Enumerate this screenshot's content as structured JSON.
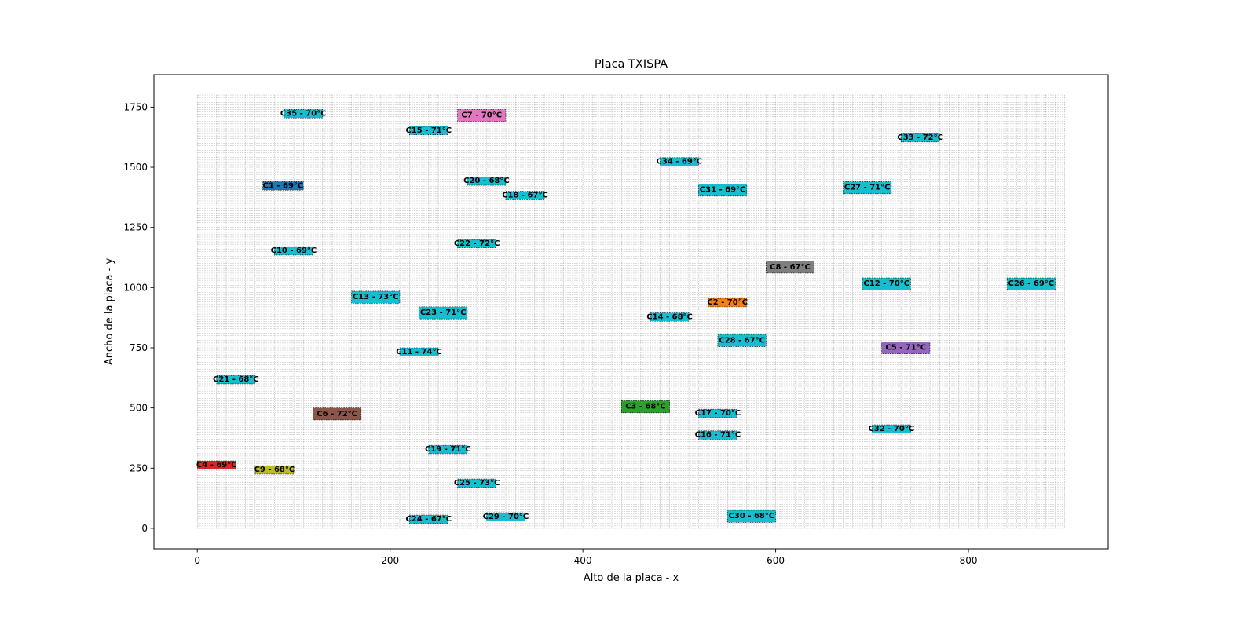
{
  "chart_data": {
    "type": "scatter",
    "title": "Placa TXISPA",
    "xlabel": "Alto de la placa - x",
    "ylabel": "Ancho de la placa - y",
    "xlim": [
      -45,
      945
    ],
    "ylim": [
      -85,
      1885
    ],
    "xticks": [
      0,
      200,
      400,
      600,
      800
    ],
    "yticks": [
      0,
      250,
      500,
      750,
      1000,
      1250,
      1500,
      1750
    ],
    "board": {
      "x_max": 900,
      "y_max": 1800,
      "grid_step": 10,
      "grid": "on"
    },
    "components": [
      {
        "label": "C1 - 69°C",
        "x": 68,
        "y": 1405,
        "w": 42,
        "h": 35,
        "color": "#1f77b4"
      },
      {
        "label": "C2 - 70°C",
        "x": 530,
        "y": 920,
        "w": 40,
        "h": 35,
        "color": "#ff7f0e"
      },
      {
        "label": "C3 - 68°C",
        "x": 440,
        "y": 480,
        "w": 50,
        "h": 50,
        "color": "#2ca02c"
      },
      {
        "label": "C4 - 69°C",
        "x": 0,
        "y": 245,
        "w": 40,
        "h": 35,
        "color": "#d62728"
      },
      {
        "label": "C5 - 71°C",
        "x": 710,
        "y": 725,
        "w": 50,
        "h": 50,
        "color": "#9467bd"
      },
      {
        "label": "C6 - 72°C",
        "x": 120,
        "y": 450,
        "w": 50,
        "h": 50,
        "color": "#8c564b"
      },
      {
        "label": "C7 - 70°C",
        "x": 270,
        "y": 1690,
        "w": 50,
        "h": 50,
        "color": "#e377c2"
      },
      {
        "label": "C8 - 67°C",
        "x": 590,
        "y": 1060,
        "w": 50,
        "h": 50,
        "color": "#7f7f7f"
      },
      {
        "label": "C9 - 68°C",
        "x": 60,
        "y": 225,
        "w": 40,
        "h": 35,
        "color": "#bcbd22"
      },
      {
        "label": "C10 - 69°C",
        "x": 80,
        "y": 1135,
        "w": 40,
        "h": 35,
        "color": "#17becf"
      },
      {
        "label": "C11 - 74°C",
        "x": 210,
        "y": 715,
        "w": 40,
        "h": 35,
        "color": "#17becf"
      },
      {
        "label": "C12 - 70°C",
        "x": 690,
        "y": 990,
        "w": 50,
        "h": 50,
        "color": "#17becf"
      },
      {
        "label": "C13 - 73°C",
        "x": 160,
        "y": 935,
        "w": 50,
        "h": 50,
        "color": "#17becf"
      },
      {
        "label": "C14 - 68°C",
        "x": 470,
        "y": 860,
        "w": 40,
        "h": 35,
        "color": "#17becf"
      },
      {
        "label": "C15 - 71°C",
        "x": 220,
        "y": 1635,
        "w": 40,
        "h": 35,
        "color": "#17becf"
      },
      {
        "label": "C16 - 71°C",
        "x": 520,
        "y": 370,
        "w": 40,
        "h": 35,
        "color": "#17becf"
      },
      {
        "label": "C17 - 70°C",
        "x": 520,
        "y": 460,
        "w": 40,
        "h": 35,
        "color": "#17becf"
      },
      {
        "label": "C18 - 67°C",
        "x": 320,
        "y": 1365,
        "w": 40,
        "h": 35,
        "color": "#17becf"
      },
      {
        "label": "C19 - 71°C",
        "x": 240,
        "y": 310,
        "w": 40,
        "h": 35,
        "color": "#17becf"
      },
      {
        "label": "C20 - 68°C",
        "x": 280,
        "y": 1425,
        "w": 40,
        "h": 35,
        "color": "#17becf"
      },
      {
        "label": "C21 - 68°C",
        "x": 20,
        "y": 600,
        "w": 40,
        "h": 35,
        "color": "#17becf"
      },
      {
        "label": "C22 - 72°C",
        "x": 270,
        "y": 1165,
        "w": 40,
        "h": 35,
        "color": "#17becf"
      },
      {
        "label": "C23 - 71°C",
        "x": 230,
        "y": 870,
        "w": 50,
        "h": 50,
        "color": "#17becf"
      },
      {
        "label": "C24 - 67°C",
        "x": 220,
        "y": 20,
        "w": 40,
        "h": 35,
        "color": "#17becf"
      },
      {
        "label": "C25 - 73°C",
        "x": 270,
        "y": 170,
        "w": 40,
        "h": 35,
        "color": "#17becf"
      },
      {
        "label": "C26 - 69°C",
        "x": 840,
        "y": 990,
        "w": 50,
        "h": 50,
        "color": "#17becf"
      },
      {
        "label": "C27 - 71°C",
        "x": 670,
        "y": 1390,
        "w": 50,
        "h": 50,
        "color": "#17becf"
      },
      {
        "label": "C28 - 67°C",
        "x": 540,
        "y": 755,
        "w": 50,
        "h": 50,
        "color": "#17becf"
      },
      {
        "label": "C29 - 70°C",
        "x": 300,
        "y": 30,
        "w": 40,
        "h": 35,
        "color": "#17becf"
      },
      {
        "label": "C30 - 68°C",
        "x": 550,
        "y": 25,
        "w": 50,
        "h": 50,
        "color": "#17becf"
      },
      {
        "label": "C31 - 69°C",
        "x": 520,
        "y": 1380,
        "w": 50,
        "h": 50,
        "color": "#17becf"
      },
      {
        "label": "C32 - 70°C",
        "x": 700,
        "y": 395,
        "w": 40,
        "h": 35,
        "color": "#17becf"
      },
      {
        "label": "C33 - 72°C",
        "x": 730,
        "y": 1605,
        "w": 40,
        "h": 35,
        "color": "#17becf"
      },
      {
        "label": "C34 - 69°C",
        "x": 480,
        "y": 1505,
        "w": 40,
        "h": 35,
        "color": "#17becf"
      },
      {
        "label": "C35 - 70°C",
        "x": 90,
        "y": 1705,
        "w": 40,
        "h": 35,
        "color": "#17becf"
      }
    ]
  }
}
